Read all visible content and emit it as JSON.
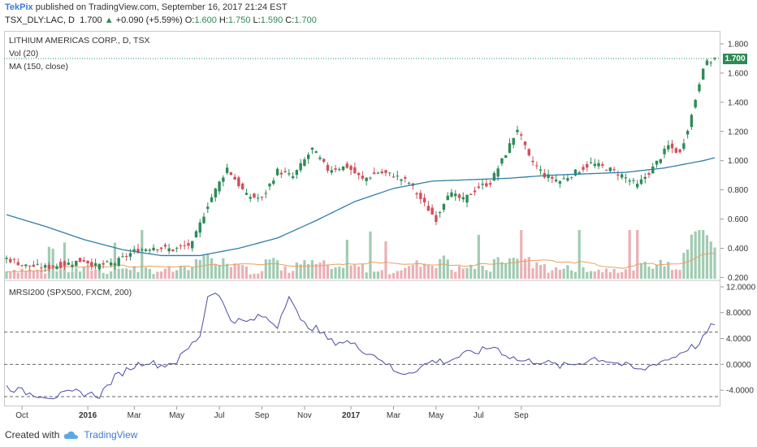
{
  "header": {
    "author": "TekPix",
    "published_text": "published on TradingView.com, September 16, 2017 21:24 EST",
    "symbol": "TSX_DLY:LAC, D",
    "last": "1.700",
    "change": "+0.090 (+5.59%)",
    "o_label": "O:",
    "o": "1.600",
    "h_label": "H:",
    "h": "1.750",
    "l_label": "L:",
    "l": "1.590",
    "c_label": "C:",
    "c": "1.700"
  },
  "legend": {
    "title": "LITHIUM AMERICAS CORP., D, TSX",
    "vol": "Vol (20)",
    "ma": "MA (150, close)",
    "mrsi": "MRSI200 (SPX500, FXCM, 200)"
  },
  "footer": {
    "created_with": "Created with",
    "brand": "TradingView"
  },
  "colors": {
    "up": "#2e8b57",
    "down": "#d0505a",
    "ma": "#2f7ea8",
    "mrsi": "#4b4ba8",
    "vol_ma": "#e8a060"
  },
  "chart_data": [
    {
      "type": "candlestick",
      "title": "LITHIUM AMERICAS CORP., D, TSX",
      "ylim": [
        0.18,
        1.85
      ],
      "y_ticks": [
        "0.200",
        "0.400",
        "0.600",
        "0.800",
        "1.000",
        "1.200",
        "1.400",
        "1.600",
        "1.800"
      ],
      "x_ticks": [
        "Oct",
        "2016",
        "Mar",
        "May",
        "Jul",
        "Sep",
        "Nov",
        "2017",
        "Mar",
        "May",
        "Jul",
        "Sep"
      ],
      "last_price": "1.700",
      "price_anchors": [
        [
          0,
          0.33
        ],
        [
          5,
          0.28
        ],
        [
          10,
          0.27
        ],
        [
          15,
          0.29
        ],
        [
          20,
          0.32
        ],
        [
          23,
          0.28
        ],
        [
          28,
          0.3
        ],
        [
          33,
          0.38
        ],
        [
          38,
          0.41
        ],
        [
          43,
          0.39
        ],
        [
          48,
          0.43
        ],
        [
          52,
          0.7
        ],
        [
          57,
          0.95
        ],
        [
          62,
          0.76
        ],
        [
          66,
          0.74
        ],
        [
          70,
          0.93
        ],
        [
          74,
          0.89
        ],
        [
          79,
          1.08
        ],
        [
          83,
          0.94
        ],
        [
          88,
          0.96
        ],
        [
          92,
          0.87
        ],
        [
          96,
          0.92
        ],
        [
          100,
          0.9
        ],
        [
          104,
          0.85
        ],
        [
          108,
          0.7
        ],
        [
          111,
          0.6
        ],
        [
          114,
          0.78
        ],
        [
          118,
          0.73
        ],
        [
          122,
          0.82
        ],
        [
          125,
          0.85
        ],
        [
          129,
          1.05
        ],
        [
          132,
          1.22
        ],
        [
          135,
          1.02
        ],
        [
          139,
          0.9
        ],
        [
          143,
          0.86
        ],
        [
          147,
          0.92
        ],
        [
          151,
          0.98
        ],
        [
          155,
          0.95
        ],
        [
          159,
          0.9
        ],
        [
          163,
          0.83
        ],
        [
          167,
          0.95
        ],
        [
          171,
          1.1
        ],
        [
          174,
          1.05
        ],
        [
          177,
          1.31
        ],
        [
          180,
          1.65
        ],
        [
          183,
          1.7
        ]
      ],
      "moving_average_anchors": [
        [
          0,
          0.63
        ],
        [
          10,
          0.55
        ],
        [
          20,
          0.46
        ],
        [
          30,
          0.39
        ],
        [
          40,
          0.35
        ],
        [
          50,
          0.35
        ],
        [
          60,
          0.4
        ],
        [
          70,
          0.47
        ],
        [
          80,
          0.59
        ],
        [
          90,
          0.72
        ],
        [
          100,
          0.81
        ],
        [
          110,
          0.86
        ],
        [
          120,
          0.87
        ],
        [
          130,
          0.88
        ],
        [
          140,
          0.9
        ],
        [
          150,
          0.91
        ],
        [
          160,
          0.92
        ],
        [
          170,
          0.95
        ],
        [
          180,
          1.0
        ],
        [
          183,
          1.02
        ]
      ]
    },
    {
      "type": "line",
      "title": "MRSI200 (SPX500, FXCM, 200)",
      "ylim": [
        -6,
        13
      ],
      "y_ticks": [
        "-4.0000",
        "0.0000",
        "4.0000",
        "8.0000",
        "12.0000"
      ],
      "reference_levels": [
        -5,
        0,
        5
      ],
      "anchors": [
        [
          0,
          -3.5
        ],
        [
          6,
          -4.5
        ],
        [
          12,
          -5.0
        ],
        [
          18,
          -4.3
        ],
        [
          24,
          -4.8
        ],
        [
          28,
          -2.0
        ],
        [
          32,
          -0.5
        ],
        [
          36,
          0.5
        ],
        [
          40,
          -0.2
        ],
        [
          44,
          0.5
        ],
        [
          47,
          2.5
        ],
        [
          50,
          4.5
        ],
        [
          52,
          10.5
        ],
        [
          54,
          11.5
        ],
        [
          58,
          7.0
        ],
        [
          62,
          6.5
        ],
        [
          66,
          7.5
        ],
        [
          70,
          6.0
        ],
        [
          73,
          11.0
        ],
        [
          76,
          6.5
        ],
        [
          80,
          5.5
        ],
        [
          84,
          3.5
        ],
        [
          88,
          3.5
        ],
        [
          93,
          2.0
        ],
        [
          97,
          0.8
        ],
        [
          101,
          -1.5
        ],
        [
          105,
          -1.0
        ],
        [
          110,
          0.5
        ],
        [
          114,
          0.5
        ],
        [
          118,
          1.5
        ],
        [
          122,
          2.0
        ],
        [
          126,
          2.8
        ],
        [
          129,
          1.5
        ],
        [
          133,
          0.5
        ],
        [
          138,
          0.5
        ],
        [
          143,
          -0.3
        ],
        [
          148,
          0.2
        ],
        [
          152,
          1.0
        ],
        [
          156,
          0.5
        ],
        [
          160,
          -0.2
        ],
        [
          164,
          -1.0
        ],
        [
          168,
          0.3
        ],
        [
          172,
          1.0
        ],
        [
          176,
          2.5
        ],
        [
          179,
          3.0
        ],
        [
          181,
          5.0
        ],
        [
          183,
          6.5
        ]
      ]
    }
  ]
}
